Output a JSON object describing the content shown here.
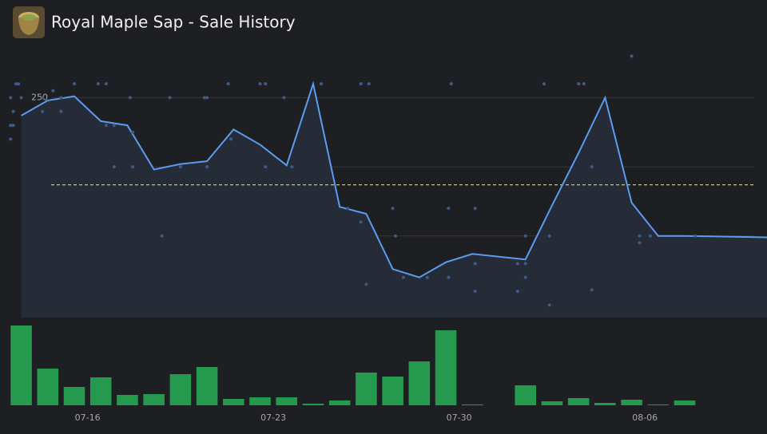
{
  "chart_data": [
    {
      "type": "line",
      "title": "Royal Maple Sap - Sale History",
      "x": [
        13.5,
        14.5,
        15.5,
        16.5,
        17.5,
        18.5,
        19.5,
        20.5,
        21.5,
        22.5,
        23.5,
        24.5,
        25.5,
        26.5,
        27.5,
        28.5,
        29.5,
        30.5,
        32.5,
        33.5,
        34.5,
        35.5,
        36.5,
        37.5,
        38.5,
        41.6
      ],
      "series": [
        {
          "color": "#5b9cf0",
          "values": [
            237,
            248,
            251,
            233,
            230,
            198,
            202,
            204,
            227,
            216,
            201,
            260,
            171,
            166,
            126,
            120,
            131,
            137,
            133,
            172,
            210,
            250,
            174,
            150,
            150,
            149
          ]
        }
      ],
      "points": {
        "color": "#3f5b86",
        "x": [
          13.1,
          13.2,
          13.1,
          13.2,
          13.1,
          13.3,
          13.4,
          13.5,
          14.3,
          14.3,
          14.7,
          15.0,
          15.0,
          15.5,
          16.4,
          16.7,
          16.7,
          17.0,
          17.0,
          17.6,
          17.7,
          17.7,
          18.8,
          19.1,
          19.5,
          20.4,
          20.5,
          20.5,
          21.3,
          21.4,
          22.5,
          22.7,
          22.7,
          23.4,
          23.7,
          24.8,
          25.8,
          26.3,
          26.3,
          26.5,
          26.6,
          27.5,
          27.6,
          27.9,
          28.8,
          29.6,
          29.6,
          29.7,
          30.6,
          30.6,
          30.6,
          32.2,
          32.2,
          32.5,
          32.5,
          32.5,
          33.2,
          33.4,
          33.4,
          34.5,
          34.7,
          35.0,
          35.0,
          36.5,
          36.8,
          36.8,
          37.2,
          38.9
        ],
        "values": [
          250,
          240,
          230,
          230,
          220,
          260,
          260,
          250,
          250,
          240,
          255,
          250,
          240,
          260,
          260,
          260,
          230,
          230,
          200,
          250,
          225,
          200,
          150,
          250,
          200,
          250,
          250,
          200,
          260,
          220,
          260,
          260,
          200,
          250,
          200,
          260,
          170,
          260,
          160,
          115,
          260,
          170,
          150,
          120,
          120,
          170,
          120,
          260,
          170,
          130,
          110,
          130,
          110,
          150,
          130,
          120,
          260,
          150,
          100,
          260,
          260,
          200,
          111,
          280,
          145,
          150,
          150,
          150
        ]
      },
      "average": {
        "value": 187,
        "color": "#d9c62b"
      },
      "xlim": [
        12.7,
        41.6
      ],
      "ylim": [
        91,
        286
      ],
      "yticks": [
        100,
        150,
        200,
        250
      ],
      "grid": true
    },
    {
      "type": "bar",
      "x": [
        13.5,
        14.5,
        15.5,
        16.5,
        17.5,
        18.5,
        19.5,
        20.5,
        21.5,
        22.5,
        23.5,
        24.5,
        25.5,
        26.5,
        27.5,
        28.5,
        29.5,
        30.5,
        32.5,
        33.5,
        34.5,
        35.5,
        36.5,
        37.5,
        38.5
      ],
      "values": [
        100,
        46,
        23,
        35,
        13,
        14,
        39,
        48,
        8,
        10,
        10,
        2,
        6,
        41,
        36,
        55,
        94,
        1,
        25,
        5,
        9,
        3,
        7,
        1,
        6
      ],
      "color": "#259a4e",
      "xlim": [
        12.7,
        41.6
      ],
      "ylim": [
        0,
        100
      ],
      "xticks": [
        {
          "value": 16,
          "label": "07-16"
        },
        {
          "value": 23,
          "label": "07-23"
        },
        {
          "value": 30,
          "label": "07-30"
        },
        {
          "value": 37,
          "label": "08-06"
        }
      ]
    }
  ]
}
